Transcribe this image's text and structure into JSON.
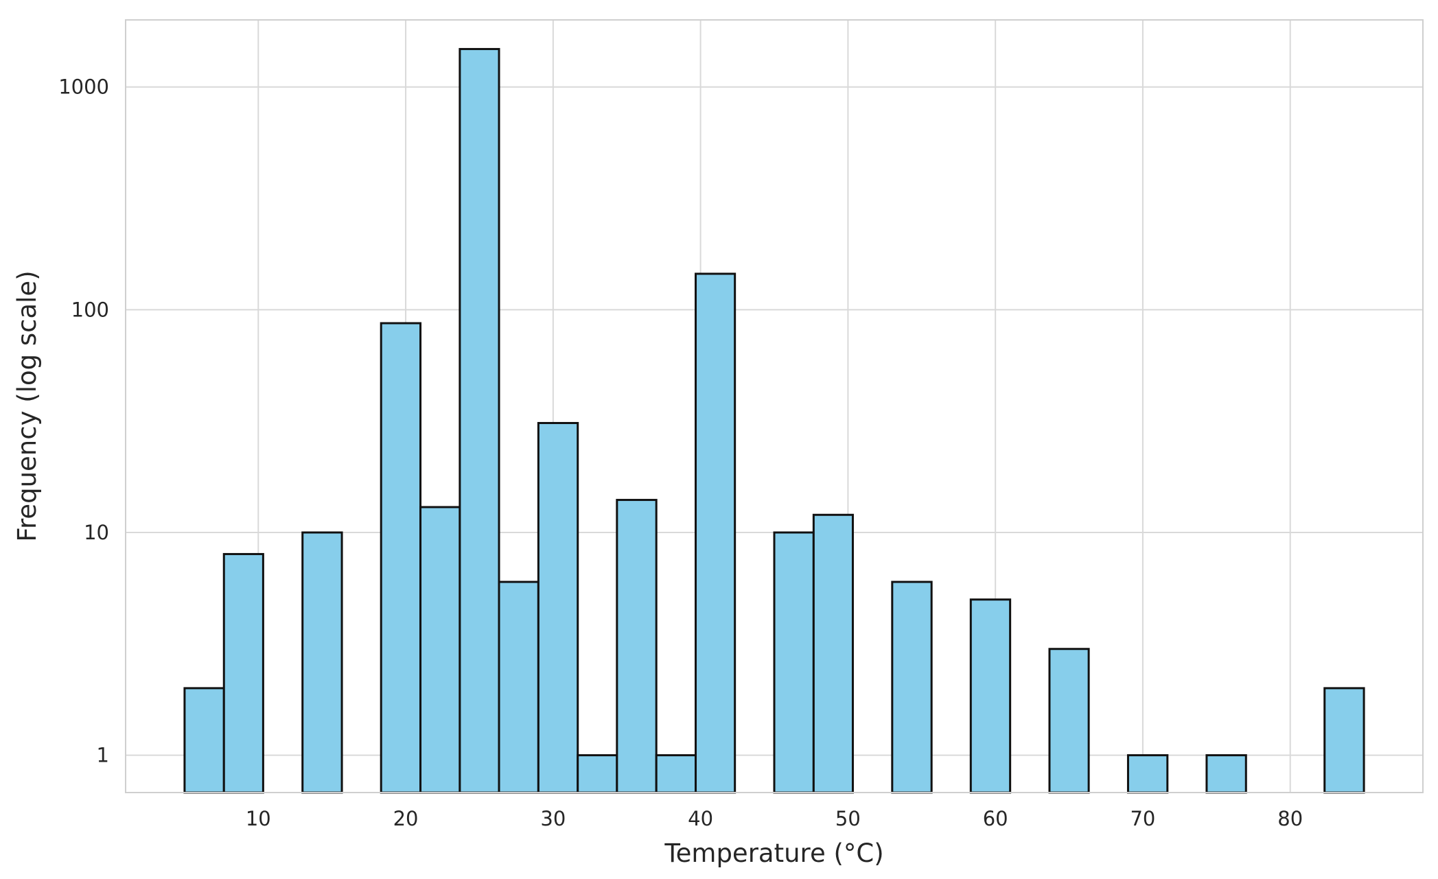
{
  "chart_data": {
    "type": "bar",
    "subtype": "histogram",
    "xlabel": "Temperature (°C)",
    "ylabel": "Frequency (log scale)",
    "xlim": [
      1,
      89
    ],
    "ylim": [
      0.68,
      2000
    ],
    "y_scale": "log",
    "grid": true,
    "x_ticks": [
      10,
      20,
      30,
      40,
      50,
      60,
      70,
      80
    ],
    "y_ticks": [
      1,
      10,
      100,
      1000
    ],
    "y_tick_labels": [
      "1",
      "10",
      "100",
      "1000"
    ],
    "bar_color": "#87ceeb",
    "edge_color": "#111111",
    "bins": [
      {
        "start": 5.0,
        "end": 7.67,
        "count": 2
      },
      {
        "start": 7.67,
        "end": 10.33,
        "count": 8
      },
      {
        "start": 10.33,
        "end": 13.0,
        "count": 0
      },
      {
        "start": 13.0,
        "end": 15.67,
        "count": 10
      },
      {
        "start": 15.67,
        "end": 18.33,
        "count": 0
      },
      {
        "start": 18.33,
        "end": 21.0,
        "count": 87
      },
      {
        "start": 21.0,
        "end": 23.67,
        "count": 13
      },
      {
        "start": 23.67,
        "end": 26.33,
        "count": 1480
      },
      {
        "start": 26.33,
        "end": 29.0,
        "count": 6
      },
      {
        "start": 29.0,
        "end": 31.67,
        "count": 31
      },
      {
        "start": 31.67,
        "end": 34.33,
        "count": 1
      },
      {
        "start": 34.33,
        "end": 37.0,
        "count": 14
      },
      {
        "start": 37.0,
        "end": 39.67,
        "count": 1
      },
      {
        "start": 39.67,
        "end": 42.33,
        "count": 145
      },
      {
        "start": 42.33,
        "end": 45.0,
        "count": 0
      },
      {
        "start": 45.0,
        "end": 47.67,
        "count": 10
      },
      {
        "start": 47.67,
        "end": 50.33,
        "count": 12
      },
      {
        "start": 50.33,
        "end": 53.0,
        "count": 0
      },
      {
        "start": 53.0,
        "end": 55.67,
        "count": 6
      },
      {
        "start": 55.67,
        "end": 58.33,
        "count": 0
      },
      {
        "start": 58.33,
        "end": 61.0,
        "count": 5
      },
      {
        "start": 61.0,
        "end": 63.67,
        "count": 0
      },
      {
        "start": 63.67,
        "end": 66.33,
        "count": 3
      },
      {
        "start": 66.33,
        "end": 69.0,
        "count": 0
      },
      {
        "start": 69.0,
        "end": 71.67,
        "count": 1
      },
      {
        "start": 71.67,
        "end": 74.33,
        "count": 0
      },
      {
        "start": 74.33,
        "end": 77.0,
        "count": 1
      },
      {
        "start": 77.0,
        "end": 79.67,
        "count": 0
      },
      {
        "start": 79.67,
        "end": 82.33,
        "count": 0
      },
      {
        "start": 82.33,
        "end": 85.0,
        "count": 2
      }
    ]
  }
}
